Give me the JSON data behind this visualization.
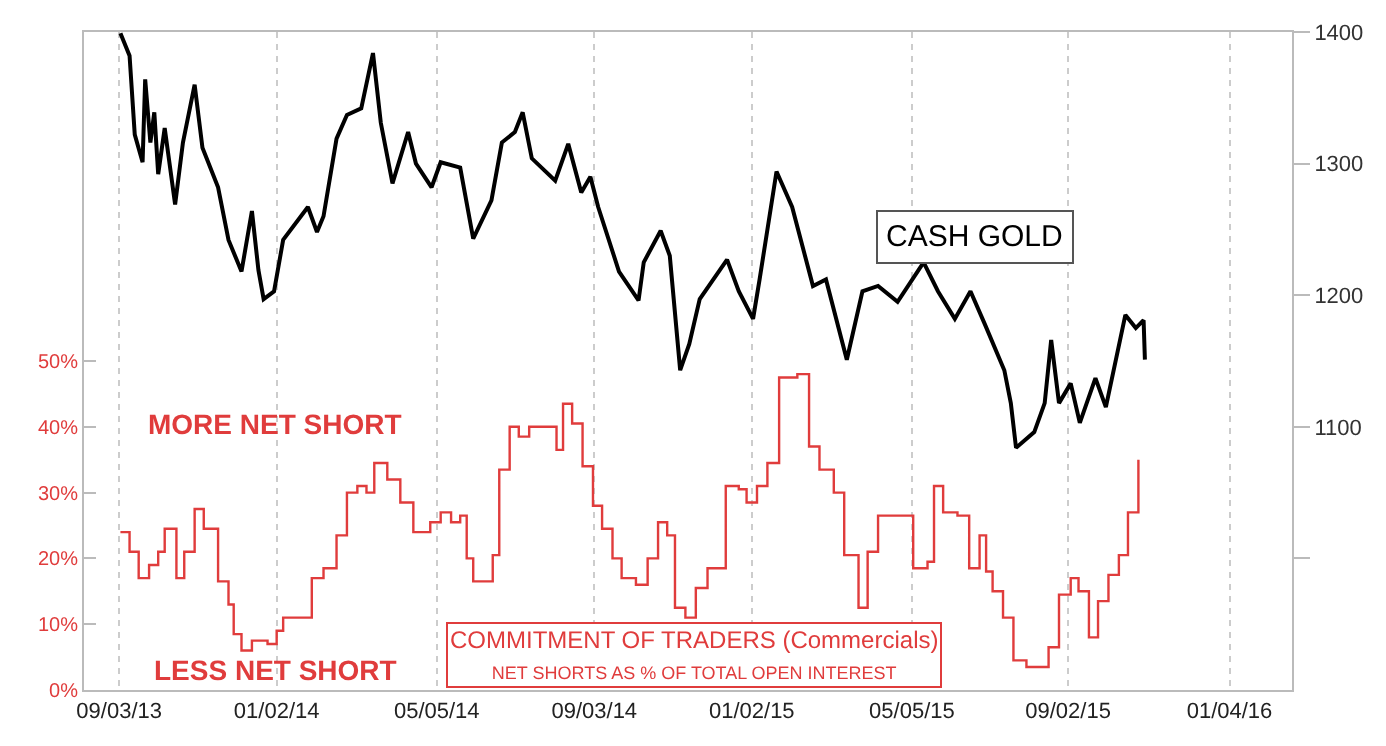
{
  "chart_data": {
    "type": "line",
    "series": [
      {
        "name": "CASH GOLD",
        "axis": "y2",
        "color": "#000000",
        "x": [
          "2013-09-04",
          "2013-09-11",
          "2013-09-15",
          "2013-09-21",
          "2013-09-23",
          "2013-09-27",
          "2013-09-30",
          "2013-10-03",
          "2013-10-08",
          "2013-10-16",
          "2013-10-22",
          "2013-10-31",
          "2013-11-06",
          "2013-11-18",
          "2013-11-26",
          "2013-12-06",
          "2013-12-14",
          "2013-12-19",
          "2013-12-23",
          "2013-12-31",
          "2014-01-07",
          "2014-01-26",
          "2014-02-02",
          "2014-02-07",
          "2014-02-17",
          "2014-02-25",
          "2014-03-08",
          "2014-03-17",
          "2014-03-23",
          "2014-04-01",
          "2014-04-13",
          "2014-04-19",
          "2014-05-01",
          "2014-05-08",
          "2014-05-23",
          "2014-06-02",
          "2014-06-16",
          "2014-06-24",
          "2014-07-04",
          "2014-07-10",
          "2014-07-17",
          "2014-08-04",
          "2014-08-14",
          "2014-08-24",
          "2014-08-31",
          "2014-09-06",
          "2014-09-22",
          "2014-10-07",
          "2014-10-11",
          "2014-10-24",
          "2014-10-31",
          "2014-11-08",
          "2014-11-15",
          "2014-11-23",
          "2014-12-14",
          "2014-12-23",
          "2015-01-03",
          "2015-01-08",
          "2015-01-21",
          "2015-02-02",
          "2015-02-18",
          "2015-02-28",
          "2015-03-16",
          "2015-03-28",
          "2015-04-09",
          "2015-04-24",
          "2015-05-14",
          "2015-05-25",
          "2015-06-07",
          "2015-06-19",
          "2015-06-30",
          "2015-07-15",
          "2015-07-20",
          "2015-07-24",
          "2015-08-07",
          "2015-08-15",
          "2015-08-20",
          "2015-08-26",
          "2015-09-04",
          "2015-09-11",
          "2015-09-23",
          "2015-10-01",
          "2015-10-16",
          "2015-10-24",
          "2015-10-30",
          "2015-10-31"
        ],
        "values": [
          1399,
          1382,
          1322,
          1301,
          1364,
          1316,
          1339,
          1292,
          1327,
          1269,
          1316,
          1360,
          1312,
          1282,
          1242,
          1218,
          1264,
          1219,
          1197,
          1203,
          1242,
          1267,
          1248,
          1260,
          1319,
          1337,
          1342,
          1384,
          1331,
          1285,
          1324,
          1300,
          1282,
          1301,
          1297,
          1243,
          1272,
          1316,
          1324,
          1339,
          1304,
          1287,
          1315,
          1278,
          1290,
          1267,
          1218,
          1196,
          1225,
          1249,
          1230,
          1143,
          1163,
          1197,
          1227,
          1203,
          1182,
          1212,
          1294,
          1267,
          1207,
          1212,
          1151,
          1203,
          1207,
          1195,
          1225,
          1203,
          1182,
          1203,
          1178,
          1143,
          1118,
          1084,
          1096,
          1118,
          1166,
          1118,
          1133,
          1103,
          1137,
          1115,
          1185,
          1175,
          1181,
          1151
        ]
      },
      {
        "name": "COMMITMENT OF TRADERS (Commercials)",
        "type": "step",
        "color": "#e03c3c",
        "x": [
          "2013-09-04",
          "2013-09-11",
          "2013-09-18",
          "2013-09-26",
          "2013-10-03",
          "2013-10-08",
          "2013-10-17",
          "2013-10-23",
          "2013-10-31",
          "2013-11-07",
          "2013-11-18",
          "2013-11-26",
          "2013-11-30",
          "2013-12-06",
          "2013-12-14",
          "2013-12-26",
          "2014-01-02",
          "2014-01-07",
          "2014-01-29",
          "2014-02-07",
          "2014-02-17",
          "2014-02-25",
          "2014-03-05",
          "2014-03-12",
          "2014-03-18",
          "2014-03-28",
          "2014-04-07",
          "2014-04-17",
          "2014-04-30",
          "2014-05-08",
          "2014-05-16",
          "2014-05-23",
          "2014-05-28",
          "2014-06-02",
          "2014-06-13",
          "2014-06-17",
          "2014-06-22",
          "2014-06-30",
          "2014-07-07",
          "2014-07-15",
          "2014-07-29",
          "2014-08-05",
          "2014-08-10",
          "2014-08-17",
          "2014-08-25",
          "2014-09-02",
          "2014-09-09",
          "2014-09-17",
          "2014-09-24",
          "2014-10-05",
          "2014-10-14",
          "2014-10-22",
          "2014-10-29",
          "2014-11-04",
          "2014-11-12",
          "2014-11-20",
          "2014-11-29",
          "2014-12-13",
          "2014-12-23",
          "2014-12-29",
          "2015-01-06",
          "2015-01-14",
          "2015-01-23",
          "2015-02-06",
          "2015-02-15",
          "2015-02-23",
          "2015-03-06",
          "2015-03-14",
          "2015-03-25",
          "2015-04-01",
          "2015-04-09",
          "2015-04-26",
          "2015-05-06",
          "2015-05-17",
          "2015-05-22",
          "2015-05-29",
          "2015-06-09",
          "2015-06-18",
          "2015-06-26",
          "2015-07-01",
          "2015-07-06",
          "2015-07-14",
          "2015-07-22",
          "2015-08-01",
          "2015-08-11",
          "2015-08-18",
          "2015-08-26",
          "2015-09-04",
          "2015-09-10",
          "2015-09-18",
          "2015-09-25",
          "2015-10-03",
          "2015-10-11",
          "2015-10-18",
          "2015-10-26"
        ],
        "values": [
          24,
          21,
          17,
          19,
          21,
          24.5,
          17,
          21,
          27.5,
          24.5,
          16.5,
          13,
          8.5,
          6,
          7.5,
          7,
          9,
          11,
          17,
          18.5,
          23.5,
          30,
          31,
          30,
          34.5,
          32,
          28.5,
          24,
          25.5,
          27,
          25.5,
          26.5,
          20,
          16.5,
          16.5,
          20.5,
          33.5,
          40,
          38.5,
          40,
          40,
          36.5,
          43.5,
          40.5,
          34,
          28,
          24.5,
          20,
          17,
          16,
          20,
          25.5,
          23.5,
          12.5,
          11,
          15.5,
          18.5,
          31,
          30.5,
          28.5,
          31,
          34.5,
          47.5,
          48,
          37,
          33.5,
          30,
          20.5,
          12.5,
          21,
          26.5,
          26.5,
          18.5,
          19.5,
          31,
          27,
          26.5,
          18.5,
          23.5,
          18,
          15,
          11,
          4.5,
          3.5,
          3.5,
          6.5,
          14.5,
          17,
          15,
          8,
          13.5,
          17.5,
          20.5,
          27,
          35
        ]
      }
    ],
    "xlim": [
      "2013-08-07",
      "2016-02-21"
    ],
    "xticks": [
      {
        "value": "2013-09-03",
        "label": "09/03/13"
      },
      {
        "value": "2014-01-02",
        "label": "01/02/14"
      },
      {
        "value": "2014-05-05",
        "label": "05/05/14"
      },
      {
        "value": "2014-09-03",
        "label": "09/03/14"
      },
      {
        "value": "2015-01-02",
        "label": "01/02/15"
      },
      {
        "value": "2015-05-05",
        "label": "05/05/15"
      },
      {
        "value": "2015-09-02",
        "label": "09/02/15"
      },
      {
        "value": "2016-01-04",
        "label": "01/04/16"
      }
    ],
    "ylim": [
      0,
      100
    ],
    "yticks": [
      {
        "value": 0,
        "label": "0%"
      },
      {
        "value": 10,
        "label": "10%"
      },
      {
        "value": 20,
        "label": "20%"
      },
      {
        "value": 30,
        "label": "30%"
      },
      {
        "value": 40,
        "label": "40%"
      },
      {
        "value": 50,
        "label": "50%"
      }
    ],
    "y2lim": [
      900,
      1400
    ],
    "y2ticks": [
      {
        "value": 1000,
        "label": null
      },
      1100,
      1200,
      1300,
      1400
    ],
    "grid": "x",
    "legend": false,
    "annotations": [
      "NET SHORTS AS % OF TOTAL OPEN INTEREST",
      "MORE NET SHORT",
      "LESS NET SHORT"
    ]
  }
}
